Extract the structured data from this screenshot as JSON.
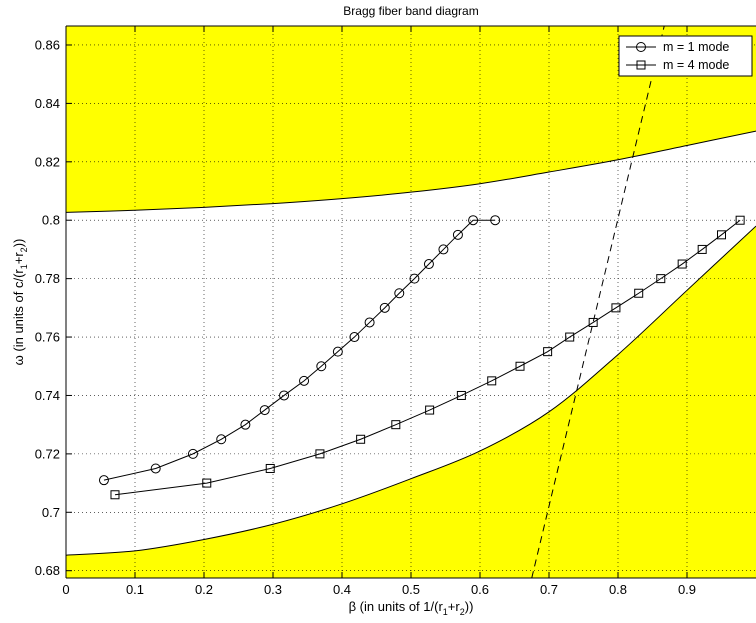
{
  "chart_data": {
    "type": "line",
    "title": "Bragg fiber band diagram",
    "xlabel": {
      "base": "β (in units of 1/(r",
      "sub1": "1",
      "mid": "+r",
      "sub2": "2",
      "end": "))"
    },
    "ylabel": {
      "base": "ω (in units of c/(r",
      "sub1": "1",
      "mid": "+r",
      "sub2": "2",
      "end": "))"
    },
    "xlim": [
      0,
      1
    ],
    "ylim": [
      0.6775,
      0.8665
    ],
    "xticks": [
      "0",
      "0.1",
      "0.2",
      "0.3",
      "0.4",
      "0.5",
      "0.6",
      "0.7",
      "0.8",
      "0.9"
    ],
    "yticks": [
      "0.68",
      "0.7",
      "0.72",
      "0.74",
      "0.76",
      "0.78",
      "0.8",
      "0.82",
      "0.84",
      "0.86"
    ],
    "grid": true,
    "legend_position": "top-right",
    "colors": {
      "band": "#ffff00",
      "line": "#000000"
    },
    "bands": {
      "upper": {
        "x": [
          0,
          0.1,
          0.2,
          0.3,
          0.4,
          0.5,
          0.6,
          0.7,
          0.8,
          0.9,
          1.0
        ],
        "y": [
          0.8027,
          0.8034,
          0.8044,
          0.8057,
          0.8074,
          0.8096,
          0.8125,
          0.8165,
          0.8207,
          0.8256,
          0.8305
        ]
      },
      "lower": {
        "x": [
          0,
          0.1,
          0.2,
          0.3,
          0.4,
          0.5,
          0.6,
          0.7,
          0.8,
          0.9,
          1.0
        ],
        "y": [
          0.6853,
          0.6868,
          0.6907,
          0.6959,
          0.7029,
          0.7115,
          0.721,
          0.7344,
          0.754,
          0.776,
          0.798
        ]
      }
    },
    "light_line": {
      "x": [
        0.675,
        0.867
      ],
      "y": [
        0.6775,
        0.8665
      ]
    },
    "series": [
      {
        "name": "m = 1 mode",
        "marker": "circle",
        "x": [
          0.055,
          0.13,
          0.184,
          0.225,
          0.26,
          0.288,
          0.316,
          0.345,
          0.37,
          0.394,
          0.418,
          0.44,
          0.462,
          0.483,
          0.505,
          0.526,
          0.547,
          0.568,
          0.59,
          0.622
        ],
        "y": [
          0.711,
          0.715,
          0.72,
          0.725,
          0.73,
          0.735,
          0.74,
          0.745,
          0.75,
          0.755,
          0.76,
          0.765,
          0.77,
          0.775,
          0.78,
          0.785,
          0.79,
          0.795,
          0.8,
          0.8
        ]
      },
      {
        "name": "m = 4 mode",
        "marker": "square",
        "x": [
          0.071,
          0.204,
          0.296,
          0.368,
          0.427,
          0.478,
          0.527,
          0.573,
          0.617,
          0.658,
          0.698,
          0.73,
          0.764,
          0.797,
          0.83,
          0.862,
          0.893,
          0.922,
          0.95,
          0.977
        ],
        "y": [
          0.706,
          0.71,
          0.715,
          0.72,
          0.725,
          0.73,
          0.735,
          0.74,
          0.745,
          0.75,
          0.755,
          0.76,
          0.765,
          0.77,
          0.775,
          0.78,
          0.785,
          0.79,
          0.795,
          0.8
        ]
      }
    ]
  }
}
